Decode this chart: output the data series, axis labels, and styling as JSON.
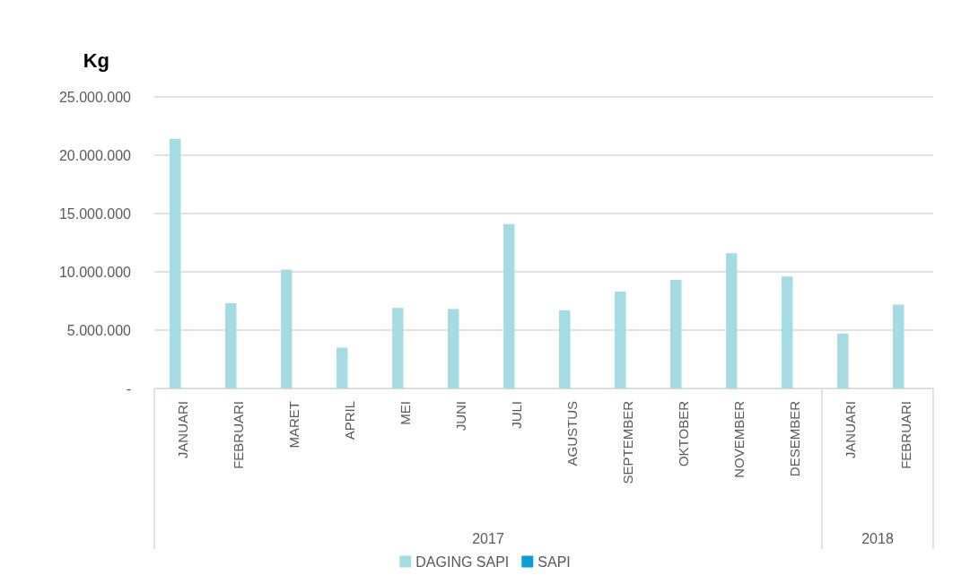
{
  "chart_data": {
    "type": "bar",
    "ylabel": "Kg",
    "categories": [
      "JANUARI",
      "FEBRUARI",
      "MARET",
      "APRIL",
      "MEI",
      "JUNI",
      "JULI",
      "AGUSTUS",
      "SEPTEMBER",
      "OKTOBER",
      "NOVEMBER",
      "DESEMBER",
      "JANUARI",
      "FEBRUARI"
    ],
    "series": [
      {
        "name": "DAGING SAPI",
        "color": "#a5dce3",
        "values": [
          21400000,
          7300000,
          10200000,
          3500000,
          6900000,
          6800000,
          14100000,
          6700000,
          8300000,
          9300000,
          11600000,
          9600000,
          4700000,
          7200000
        ]
      },
      {
        "name": "SAPI",
        "color": "#0c9dd9",
        "values": [
          0,
          0,
          0,
          0,
          0,
          0,
          0,
          0,
          0,
          0,
          0,
          0,
          0,
          0
        ]
      }
    ],
    "ylim": [
      0,
      25000000
    ],
    "yticks": [
      {
        "value": 0,
        "label": "-"
      },
      {
        "value": 5000000,
        "label": "5.000.000"
      },
      {
        "value": 10000000,
        "label": "10.000.000"
      },
      {
        "value": 15000000,
        "label": "15.000.000"
      },
      {
        "value": 20000000,
        "label": "20.000.000"
      },
      {
        "value": 25000000,
        "label": "25.000.000"
      }
    ],
    "annotations": [
      "2017",
      "2018"
    ],
    "grid": "y",
    "legend": "bottom"
  }
}
